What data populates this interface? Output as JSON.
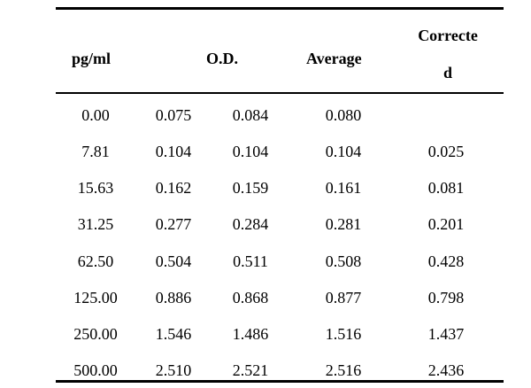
{
  "table": {
    "headers": {
      "concentration": "pg/ml",
      "od": "O.D.",
      "average": "Average",
      "corrected_line1": "Correcte",
      "corrected_line2": "d"
    },
    "rows": [
      {
        "pg": "0.00",
        "od1": "0.075",
        "od2": "0.084",
        "average": "0.080",
        "corrected": ""
      },
      {
        "pg": "7.81",
        "od1": "0.104",
        "od2": "0.104",
        "average": "0.104",
        "corrected": "0.025"
      },
      {
        "pg": "15.63",
        "od1": "0.162",
        "od2": "0.159",
        "average": "0.161",
        "corrected": "0.081"
      },
      {
        "pg": "31.25",
        "od1": "0.277",
        "od2": "0.284",
        "average": "0.281",
        "corrected": "0.201"
      },
      {
        "pg": "62.50",
        "od1": "0.504",
        "od2": "0.511",
        "average": "0.508",
        "corrected": "0.428"
      },
      {
        "pg": "125.00",
        "od1": "0.886",
        "od2": "0.868",
        "average": "0.877",
        "corrected": "0.798"
      },
      {
        "pg": "250.00",
        "od1": "1.546",
        "od2": "1.486",
        "average": "1.516",
        "corrected": "1.437"
      },
      {
        "pg": "500.00",
        "od1": "2.510",
        "od2": "2.521",
        "average": "2.516",
        "corrected": "2.436"
      }
    ]
  }
}
